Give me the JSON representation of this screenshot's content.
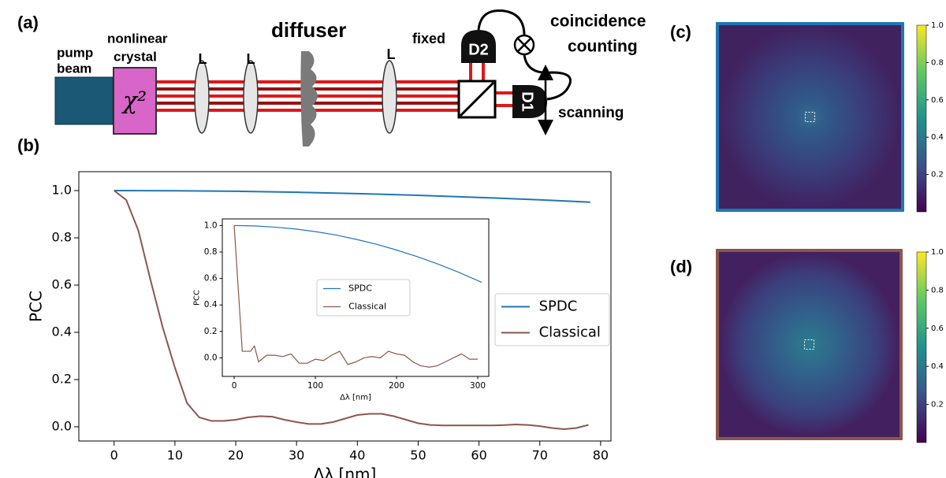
{
  "diagram": {
    "panel_label": "(a)",
    "pump": [
      "pump",
      "beam"
    ],
    "crystal": [
      "nonlinear",
      "crystal"
    ],
    "chi": "χ²",
    "lenses": [
      "L",
      "L",
      "L"
    ],
    "diffuser": "diffuser",
    "fixed": "fixed",
    "detectors": [
      "D2",
      "D1"
    ],
    "coincidence": [
      "coincidence",
      "counting"
    ],
    "scanning": "scanning"
  },
  "panels": {
    "b": "(b)",
    "c": "(c)",
    "d": "(d)"
  },
  "chart_data": [
    {
      "type": "line",
      "xlabel": "Δλ [nm]",
      "ylabel": "PCC",
      "xlim": [
        -5.8,
        81.7
      ],
      "ylim": [
        -0.06,
        1.08
      ],
      "xticks": [
        0,
        10,
        20,
        30,
        40,
        50,
        60,
        70,
        80
      ],
      "yticks": [
        {
          "value": 0,
          "label": "0.0"
        },
        {
          "value": 0.2,
          "label": "0.2"
        },
        {
          "value": 0.4,
          "label": "0.4"
        },
        {
          "value": 0.6,
          "label": "0.6"
        },
        {
          "value": 0.8,
          "label": "0.8"
        },
        {
          "value": 1,
          "label": "1.0"
        }
      ],
      "legend": "center right",
      "series": [
        {
          "name": "SPDC",
          "color": "#1f77b4",
          "x": [
            0,
            10,
            20,
            30,
            40,
            50,
            60,
            70,
            78.3
          ],
          "values": [
            1.0,
            0.999,
            0.997,
            0.993,
            0.987,
            0.98,
            0.971,
            0.961,
            0.951
          ]
        },
        {
          "name": "Classical",
          "color": "#8c564b",
          "x": [
            0,
            2,
            4,
            6,
            8,
            10,
            12,
            14,
            16,
            18,
            20,
            22,
            24,
            26,
            28,
            30,
            32,
            34,
            36,
            38,
            40,
            42,
            44,
            46,
            48,
            50,
            52,
            54,
            56,
            58,
            60,
            62,
            64,
            66,
            68,
            70,
            72,
            74,
            76,
            78
          ],
          "values": [
            1.0,
            0.96,
            0.83,
            0.62,
            0.42,
            0.25,
            0.1,
            0.04,
            0.025,
            0.025,
            0.03,
            0.04,
            0.045,
            0.043,
            0.03,
            0.02,
            0.012,
            0.012,
            0.02,
            0.035,
            0.05,
            0.055,
            0.055,
            0.045,
            0.03,
            0.015,
            0.008,
            0.006,
            0.006,
            0.006,
            0.006,
            0.006,
            0.007,
            0.01,
            0.008,
            0.003,
            -0.005,
            -0.01,
            -0.005,
            0.008
          ]
        }
      ]
    },
    {
      "type": "line",
      "xlabel": "Δλ [nm]",
      "ylabel": "PCC",
      "xlim": [
        -14.6,
        313.6
      ],
      "ylim": [
        -0.14,
        1.05
      ],
      "xticks": [
        0,
        100,
        200,
        300
      ],
      "yticks": [
        {
          "value": 0,
          "label": "0.0"
        },
        {
          "value": 0.2,
          "label": "0.2"
        },
        {
          "value": 0.4,
          "label": "0.4"
        },
        {
          "value": 0.6,
          "label": "0.6"
        },
        {
          "value": 0.8,
          "label": "0.8"
        },
        {
          "value": 1,
          "label": "1.0"
        }
      ],
      "legend": "center",
      "series": [
        {
          "name": "SPDC",
          "color": "#1f77b4",
          "x": [
            0,
            25,
            50,
            75,
            100,
            125,
            150,
            175,
            200,
            225,
            250,
            275,
            300,
            305
          ],
          "values": [
            1.0,
            0.997,
            0.988,
            0.974,
            0.954,
            0.929,
            0.896,
            0.859,
            0.815,
            0.766,
            0.711,
            0.651,
            0.584,
            0.57
          ]
        },
        {
          "name": "Classical",
          "color": "#8c564b",
          "x": [
            0,
            10,
            20,
            25,
            30,
            40,
            50,
            60,
            70,
            80,
            90,
            100,
            110,
            120,
            130,
            140,
            150,
            160,
            170,
            180,
            190,
            200,
            210,
            220,
            230,
            240,
            250,
            260,
            270,
            280,
            290,
            300
          ],
          "values": [
            1.0,
            0.05,
            0.05,
            0.09,
            -0.03,
            0.02,
            0.02,
            0.01,
            0.03,
            -0.04,
            -0.04,
            -0.01,
            -0.02,
            0.02,
            0.05,
            -0.05,
            -0.03,
            0.0,
            0.01,
            0.0,
            0.05,
            0.03,
            0.02,
            -0.03,
            -0.06,
            -0.07,
            -0.06,
            -0.03,
            0.0,
            0.03,
            -0.01,
            -0.01
          ]
        }
      ]
    },
    {
      "type": "heatmap",
      "colormap": "viridis",
      "border_color": "#1f77b4",
      "clim": [
        0,
        1
      ],
      "cticks": [
        {
          "value": 0.2,
          "label": "0.2"
        },
        {
          "value": 0.4,
          "label": "0.4"
        },
        {
          "value": 0.6,
          "label": "0.6"
        },
        {
          "value": 0.8,
          "label": "0.8"
        },
        {
          "value": 1,
          "label": "1.0"
        }
      ]
    },
    {
      "type": "heatmap",
      "colormap": "viridis",
      "border_color": "#8c564b",
      "clim": [
        0,
        1
      ],
      "cticks": [
        {
          "value": 0.2,
          "label": "0.2"
        },
        {
          "value": 0.4,
          "label": "0.4"
        },
        {
          "value": 0.6,
          "label": "0.6"
        },
        {
          "value": 0.8,
          "label": "0.8"
        },
        {
          "value": 1,
          "label": "1.0"
        }
      ]
    }
  ]
}
